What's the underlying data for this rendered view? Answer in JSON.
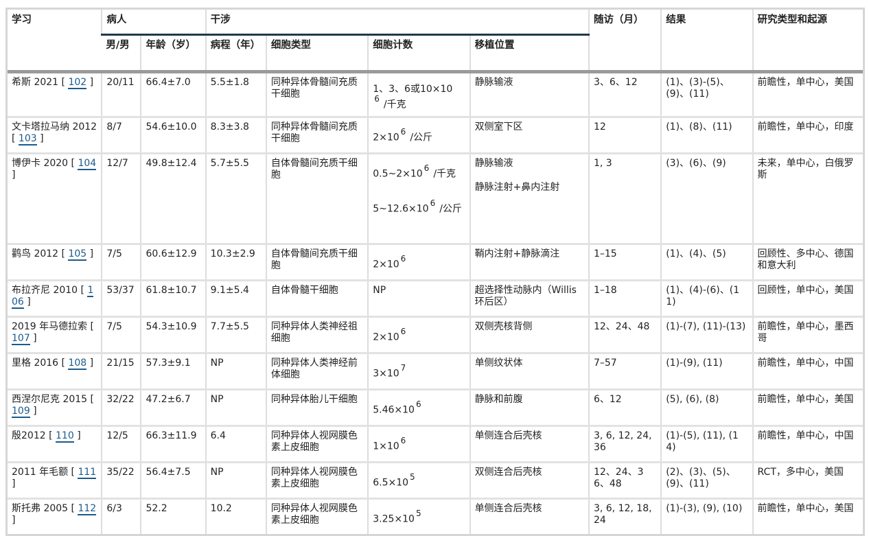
{
  "header": {
    "study": "学习",
    "patients": "病人",
    "intervention": "干涉",
    "follow_up": "随访（月）",
    "results": "结果",
    "study_type": "研究类型和起源",
    "sex": "男/男",
    "age": "年龄（岁）",
    "course": "病程（年）",
    "cell_type": "细胞类型",
    "cell_count": "细胞计数",
    "site": "移植位置"
  },
  "colors": {
    "link": "#1a5a8c",
    "group_rule": "#1d3a4a",
    "header_rule": "#9a9a9a"
  },
  "rows": [
    {
      "study": "希斯 2021",
      "ref": "102",
      "sex": "20/11",
      "age": "66.4±7.0",
      "course": "5.5±1.8",
      "cell_type": "同种异体骨髓间充质干细胞",
      "cell_count": [
        {
          "base": "1、3、6或10×10",
          "exp": "6",
          "unit": "/千克"
        }
      ],
      "site": [
        "静脉输液"
      ],
      "follow_up": "3、6、12",
      "results": "(1)、(3)-(5)、(9)、(11)",
      "study_type": "前瞻性，单中心，美国"
    },
    {
      "study": "文卡塔拉马纳 2012",
      "ref": "103",
      "sex": "8/7",
      "age": "54.6±10.0",
      "course": "8.3±3.8",
      "cell_type": "同种异体骨髓间充质干细胞",
      "cell_count": [
        {
          "base": "2×10",
          "exp": "6",
          "unit": "/公斤"
        }
      ],
      "site": [
        "双侧室下区"
      ],
      "follow_up": "12",
      "results": "(1)、(8)、(11)",
      "study_type": "前瞻性，单中心，印度"
    },
    {
      "study": "博伊卡 2020",
      "ref": "104",
      "sex": "12/7",
      "age": "49.8±12.4",
      "course": "5.7±5.5",
      "cell_type": "自体骨髓间充质干细胞",
      "cell_count": [
        {
          "base": "0.5~2×10",
          "exp": "6",
          "unit": "/千克"
        },
        {
          "base": "5~12.6×10",
          "exp": "6",
          "unit": "/公斤"
        }
      ],
      "site": [
        "静脉输液",
        "静脉注射+鼻内注射"
      ],
      "follow_up": "1, 3",
      "results": "(3)、(6)、(9)",
      "study_type": "未来，单中心，白俄罗斯"
    },
    {
      "study": "鹳鸟 2012",
      "ref": "105",
      "sex": "7/5",
      "age": "60.6±12.9",
      "course": "10.3±2.9",
      "cell_type": "自体骨髓间充质干细胞",
      "cell_count": [
        {
          "base": "2×10",
          "exp": "6",
          "unit": ""
        }
      ],
      "site": [
        "鞘内注射+静脉滴注"
      ],
      "follow_up": "1–15",
      "results": "(1)、(4)、(5)",
      "study_type": "回顾性、多中心、德国和意大利"
    },
    {
      "study": "布拉齐尼 2010",
      "ref": "106",
      "sex": "53/37",
      "age": "61.8±10.7",
      "course": "9.1±5.4",
      "cell_type": "自体骨髓干细胞",
      "cell_count": [
        {
          "base": "NP",
          "exp": "",
          "unit": ""
        }
      ],
      "site": [
        "超选择性动脉内（Willis 环后区）"
      ],
      "follow_up": "1–18",
      "results": "(1)、(4)-(6)、(11)",
      "study_type": "回顾性，单中心，美国"
    },
    {
      "study": "2019 年马德拉索",
      "ref": "107",
      "sex": "7/5",
      "age": "54.3±10.9",
      "course": "7.7±5.5",
      "cell_type": "同种异体人类神经祖细胞",
      "cell_count": [
        {
          "base": "2×10",
          "exp": "6",
          "unit": ""
        }
      ],
      "site": [
        "双侧壳核背侧"
      ],
      "follow_up": "12、24、48",
      "results": "(1)-(7), (11)-(13)",
      "study_type": "前瞻性，单中心，墨西哥"
    },
    {
      "study": "里格 2016",
      "ref": "108",
      "sex": "21/15",
      "age": "57.3±9.1",
      "course": "NP",
      "cell_type": "同种异体人类神经前体细胞",
      "cell_count": [
        {
          "base": "3×10",
          "exp": "7",
          "unit": ""
        }
      ],
      "site": [
        "单侧纹状体"
      ],
      "follow_up": "7–57",
      "results": "(1)-(9), (11)",
      "study_type": "前瞻性，单中心，中国"
    },
    {
      "study": "西涅尔尼克 2015",
      "ref": "109",
      "sex": "32/22",
      "age": "47.2±6.7",
      "course": "NP",
      "cell_type": "同种异体胎儿干细胞",
      "cell_count": [
        {
          "base": "5.46×10",
          "exp": "6",
          "unit": ""
        }
      ],
      "site": [
        "静脉和前腹"
      ],
      "follow_up": "6、12",
      "results": "(5), (6), (8)",
      "study_type": "前瞻性，单中心，美国"
    },
    {
      "study": "殷2012",
      "ref": "110",
      "sex": "12/5",
      "age": "66.3±11.9",
      "course": "6.4",
      "cell_type": "同种异体人视网膜色素上皮细胞",
      "cell_count": [
        {
          "base": "1×10",
          "exp": "6",
          "unit": ""
        }
      ],
      "site": [
        "单侧连合后壳核"
      ],
      "follow_up": "3, 6, 12, 24, 36",
      "results": "(1)-(5), (11), (14)",
      "study_type": "前瞻性，单中心，中国"
    },
    {
      "study": "2011 年毛额",
      "ref": "111",
      "sex": "35/22",
      "age": "56.4±7.5",
      "course": "NP",
      "cell_type": "同种异体人视网膜色素上皮细胞",
      "cell_count": [
        {
          "base": "6.5×10",
          "exp": "5",
          "unit": ""
        }
      ],
      "site": [
        "双侧连合后壳核"
      ],
      "follow_up": "12、24、36、48",
      "results": "(2)、(3)、(5)、(9)、(11)",
      "study_type": "RCT，多中心，美国"
    },
    {
      "study": "斯托弗 2005",
      "ref": "112",
      "sex": "6/3",
      "age": "52.2",
      "course": "10.2",
      "cell_type": "同种异体人视网膜色素上皮细胞",
      "cell_count": [
        {
          "base": "3.25×10",
          "exp": "5",
          "unit": ""
        }
      ],
      "site": [
        "单侧连合后壳核"
      ],
      "follow_up": "3, 6, 12, 18, 24",
      "results": "(1)-(3), (9), (10)",
      "study_type": "前瞻性，单中心，美国"
    }
  ]
}
